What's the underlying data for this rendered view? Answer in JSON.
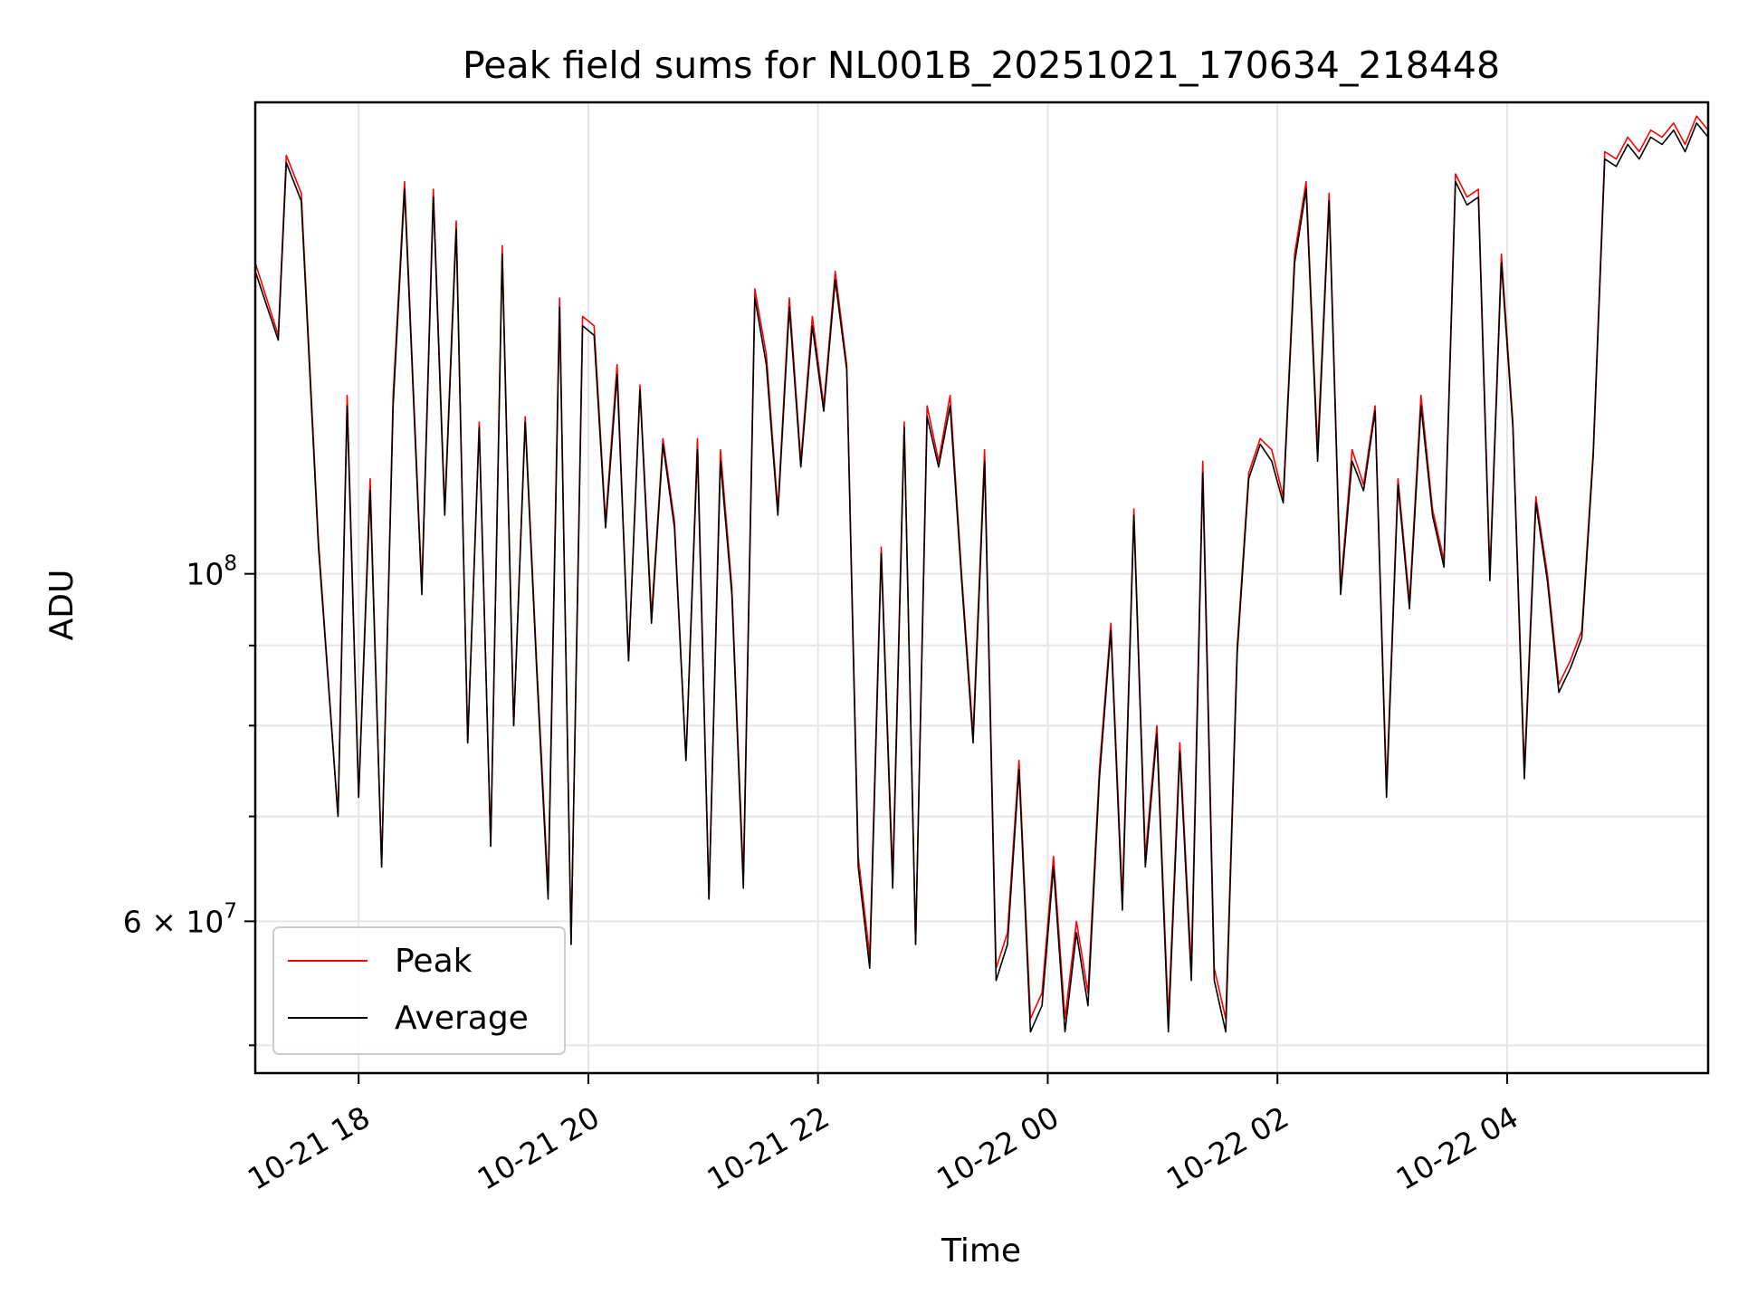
{
  "chart_data": {
    "type": "line",
    "title": "Peak field sums for NL001B_20251021_170634_218448",
    "xlabel": "Time",
    "ylabel": "ADU",
    "x_unit": "hours since 2025-10-21 17:06",
    "xlim": [
      0,
      12.65
    ],
    "ylim": [
      48000000,
      200000000
    ],
    "y_scale": "log",
    "grid": true,
    "legend_position": "lower-left",
    "x_ticks": [
      {
        "value": 0.9,
        "label": "10-21 18"
      },
      {
        "value": 2.9,
        "label": "10-21 20"
      },
      {
        "value": 4.9,
        "label": "10-21 22"
      },
      {
        "value": 6.9,
        "label": "10-22 00"
      },
      {
        "value": 8.9,
        "label": "10-22 02"
      },
      {
        "value": 10.9,
        "label": "10-22 04"
      }
    ],
    "y_ticks": [
      {
        "value": 100000000,
        "label": "10",
        "exponent": "8"
      },
      {
        "value": 60000000,
        "label": "6 × 10",
        "exponent": "7"
      }
    ],
    "y_minor_grid": [
      50000000,
      70000000,
      80000000,
      90000000
    ],
    "series": [
      {
        "name": "Peak",
        "color": "#ff0000"
      },
      {
        "name": "Average",
        "color": "#000000"
      }
    ],
    "x": [
      0.0,
      0.2,
      0.27,
      0.4,
      0.55,
      0.72,
      0.8,
      0.9,
      1.0,
      1.1,
      1.2,
      1.3,
      1.45,
      1.55,
      1.65,
      1.75,
      1.85,
      1.95,
      2.05,
      2.15,
      2.25,
      2.35,
      2.45,
      2.55,
      2.65,
      2.75,
      2.85,
      2.95,
      3.05,
      3.15,
      3.25,
      3.35,
      3.45,
      3.55,
      3.65,
      3.75,
      3.85,
      3.95,
      4.05,
      4.15,
      4.25,
      4.35,
      4.45,
      4.55,
      4.65,
      4.75,
      4.85,
      4.95,
      5.05,
      5.15,
      5.25,
      5.35,
      5.45,
      5.55,
      5.65,
      5.75,
      5.85,
      5.95,
      6.05,
      6.15,
      6.25,
      6.35,
      6.45,
      6.55,
      6.65,
      6.75,
      6.85,
      6.95,
      7.05,
      7.15,
      7.25,
      7.35,
      7.45,
      7.55,
      7.65,
      7.75,
      7.85,
      7.95,
      8.05,
      8.15,
      8.25,
      8.35,
      8.45,
      8.55,
      8.65,
      8.75,
      8.85,
      8.95,
      9.05,
      9.15,
      9.25,
      9.35,
      9.45,
      9.55,
      9.65,
      9.75,
      9.85,
      9.95,
      10.05,
      10.15,
      10.25,
      10.35,
      10.45,
      10.55,
      10.65,
      10.75,
      10.85,
      10.95,
      11.05,
      11.15,
      11.25,
      11.35,
      11.45,
      11.55,
      11.65,
      11.75,
      11.85,
      11.95,
      12.05,
      12.15,
      12.25,
      12.35,
      12.45,
      12.55,
      12.65
    ],
    "peak": [
      158000000,
      142000000,
      185000000,
      175000000,
      105000000,
      70000000,
      130000000,
      72000000,
      115000000,
      65000000,
      130000000,
      178000000,
      98000000,
      176000000,
      110000000,
      168000000,
      78000000,
      125000000,
      67000000,
      162000000,
      80000000,
      126000000,
      88000000,
      63000000,
      150000000,
      58000000,
      146000000,
      144000000,
      108000000,
      136000000,
      88000000,
      132000000,
      94000000,
      122000000,
      108000000,
      76000000,
      122000000,
      62000000,
      120000000,
      98000000,
      64000000,
      152000000,
      138000000,
      110000000,
      150000000,
      118000000,
      146000000,
      128000000,
      156000000,
      136000000,
      66000000,
      57000000,
      104000000,
      64000000,
      125000000,
      58000000,
      128000000,
      118000000,
      130000000,
      100000000,
      79000000,
      120000000,
      56000000,
      59000000,
      76000000,
      52000000,
      54000000,
      66000000,
      52000000,
      60000000,
      54000000,
      75000000,
      93000000,
      62000000,
      110000000,
      66000000,
      80000000,
      52000000,
      78000000,
      56000000,
      118000000,
      56000000,
      52000000,
      90000000,
      116000000,
      122000000,
      120000000,
      112000000,
      160000000,
      178000000,
      120000000,
      175000000,
      98000000,
      120000000,
      114000000,
      128000000,
      73000000,
      115000000,
      96000000,
      130000000,
      110000000,
      102000000,
      180000000,
      174000000,
      176000000,
      100000000,
      160000000,
      125000000,
      75000000,
      112000000,
      100000000,
      85000000,
      88000000,
      92000000,
      120000000,
      186000000,
      184000000,
      190000000,
      186000000,
      192000000,
      190000000,
      194000000,
      188000000,
      196000000,
      192000000
    ],
    "average": [
      156000000,
      141000000,
      183000000,
      173000000,
      104000000,
      70000000,
      128000000,
      72000000,
      113000000,
      65000000,
      128000000,
      176000000,
      97000000,
      174000000,
      109000000,
      166000000,
      78000000,
      124000000,
      67000000,
      160000000,
      80000000,
      125000000,
      87000000,
      62000000,
      148000000,
      58000000,
      144000000,
      142000000,
      107000000,
      134000000,
      88000000,
      131000000,
      93000000,
      121000000,
      107000000,
      76000000,
      120000000,
      62000000,
      118000000,
      97000000,
      63000000,
      150000000,
      136000000,
      109000000,
      148000000,
      117000000,
      144000000,
      127000000,
      154000000,
      135000000,
      65000000,
      56000000,
      103000000,
      63000000,
      124000000,
      58000000,
      126000000,
      117000000,
      128000000,
      99000000,
      78000000,
      118000000,
      55000000,
      58000000,
      75000000,
      51000000,
      53000000,
      65000000,
      51000000,
      59000000,
      53000000,
      74000000,
      92000000,
      61000000,
      109000000,
      65000000,
      79000000,
      51000000,
      77000000,
      55000000,
      116000000,
      55000000,
      51000000,
      89000000,
      115000000,
      121000000,
      118000000,
      111000000,
      158000000,
      176000000,
      118000000,
      173000000,
      97000000,
      118000000,
      113000000,
      127000000,
      72000000,
      114000000,
      95000000,
      128000000,
      109000000,
      101000000,
      178000000,
      172000000,
      174000000,
      99000000,
      158000000,
      124000000,
      74000000,
      111000000,
      99000000,
      84000000,
      87000000,
      91000000,
      119000000,
      184000000,
      182000000,
      188000000,
      184000000,
      190000000,
      188000000,
      192000000,
      186000000,
      194000000,
      190000000
    ]
  }
}
